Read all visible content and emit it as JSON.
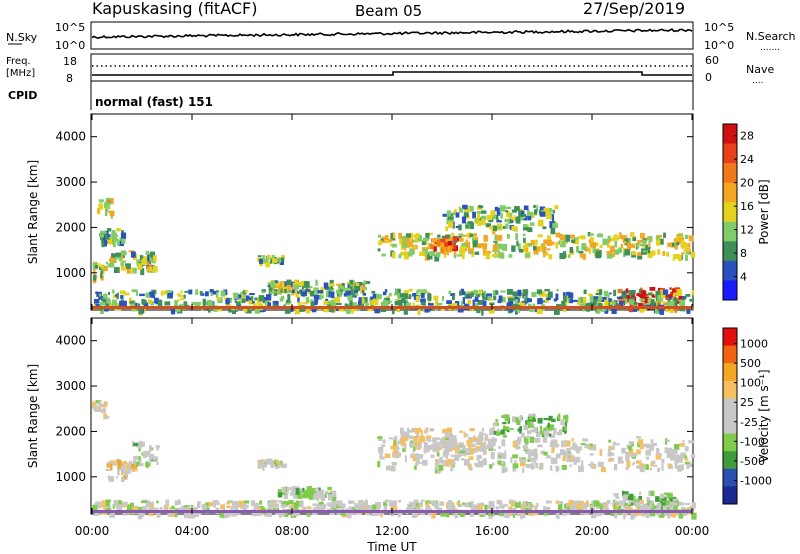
{
  "header": {
    "station": "Kapuskasing (fitACF)",
    "beam": "Beam 05",
    "date": "27/Sep/2019"
  },
  "strip": {
    "nsky_label": "N.Sky",
    "nsky_ticks": [
      "10^5",
      "10^0"
    ],
    "nsearch_label": "N.Search",
    "nsearch_ticks": [
      "10^5",
      "10^0"
    ],
    "freq_label": "Freq.",
    "freq_unit": "[MHz]",
    "freq_ticks": [
      "18",
      "8"
    ],
    "nave_label": "Nave",
    "nave_ticks": [
      "60",
      "0"
    ],
    "cpid_label": "CPID",
    "mode_text": "normal (fast) 151"
  },
  "colors": {
    "power_scale": [
      "#1a1aff",
      "#2a52be",
      "#3f8f5a",
      "#7fcc6a",
      "#e5d21e",
      "#f5a623",
      "#f07a1a",
      "#e8401a",
      "#d01010"
    ],
    "velocity_scale": [
      "#e01010",
      "#f06414",
      "#f5a623",
      "#f5c060",
      "#c8c8c8",
      "#c8c8c8",
      "#7fcc4a",
      "#3e9c3a",
      "#2a4fb0",
      "#1a2a90"
    ]
  },
  "chart_data": [
    {
      "type": "heatmap",
      "name": "power",
      "ylabel": "Slant Range [km]",
      "yticks": [
        "1000",
        "2000",
        "3000",
        "4000"
      ],
      "ylim": [
        180,
        4500
      ],
      "colorbar_label": "Power [dB]",
      "colorbar_ticks": [
        "4",
        "8",
        "12",
        "16",
        "20",
        "24",
        "28"
      ],
      "colorbar_range": [
        0,
        30
      ],
      "bands": [
        {
          "t0": 0.0,
          "t1": 0.5,
          "r0": 900,
          "r1": 1250,
          "v": 14
        },
        {
          "t0": 0.5,
          "t1": 2.5,
          "r0": 1100,
          "r1": 1500,
          "v": 12
        },
        {
          "t0": 0.2,
          "t1": 0.8,
          "r0": 2300,
          "r1": 2700,
          "v": 16
        },
        {
          "t0": 0.2,
          "t1": 1.2,
          "r0": 1700,
          "r1": 2000,
          "v": 10
        },
        {
          "t0": 6.6,
          "t1": 7.6,
          "r0": 1250,
          "r1": 1400,
          "v": 10
        },
        {
          "t0": 7.0,
          "t1": 11.0,
          "r0": 600,
          "r1": 850,
          "v": 12
        },
        {
          "t0": 11.4,
          "t1": 24.0,
          "r0": 1400,
          "r1": 1900,
          "v": 14
        },
        {
          "t0": 13.5,
          "t1": 14.5,
          "r0": 1550,
          "r1": 1800,
          "v": 22
        },
        {
          "t0": 21.0,
          "t1": 23.5,
          "r0": 250,
          "r1": 700,
          "v": 26
        },
        {
          "t0": 0.0,
          "t1": 24.0,
          "r0": 200,
          "r1": 650,
          "v": 10
        },
        {
          "t0": 14.0,
          "t1": 18.5,
          "r0": 2000,
          "r1": 2500,
          "v": 10
        }
      ]
    },
    {
      "type": "heatmap",
      "name": "velocity",
      "ylabel": "Slant Range [km]",
      "yticks": [
        "1000",
        "2000",
        "3000",
        "4000"
      ],
      "ylim": [
        180,
        4500
      ],
      "colorbar_label": "Velocity [m s⁻¹]",
      "colorbar_ticks": [
        "1000",
        "500",
        "100",
        "25",
        "-25",
        "-100",
        "-500",
        "-1000"
      ],
      "colorbar_range": [
        -1000,
        1000
      ],
      "bands": [
        {
          "t0": 0.0,
          "t1": 0.5,
          "r0": 2300,
          "r1": 2700,
          "v": 0
        },
        {
          "t0": 0.5,
          "t1": 1.6,
          "r0": 1000,
          "r1": 1400,
          "v": 150
        },
        {
          "t0": 1.6,
          "t1": 2.6,
          "r0": 1300,
          "r1": 1800,
          "v": -150
        },
        {
          "t0": 6.6,
          "t1": 7.6,
          "r0": 1250,
          "r1": 1400,
          "v": 0
        },
        {
          "t0": 7.4,
          "t1": 9.6,
          "r0": 600,
          "r1": 800,
          "v": -200
        },
        {
          "t0": 11.4,
          "t1": 24.0,
          "r0": 1200,
          "r1": 1900,
          "v": 0
        },
        {
          "t0": 12.0,
          "t1": 16.0,
          "r0": 1600,
          "r1": 2100,
          "v": 120
        },
        {
          "t0": 20.8,
          "t1": 23.5,
          "r0": 250,
          "r1": 700,
          "v": -300
        },
        {
          "t0": 0.0,
          "t1": 24.0,
          "r0": 200,
          "r1": 500,
          "v": 0
        },
        {
          "t0": 16.0,
          "t1": 19.0,
          "r0": 1900,
          "r1": 2400,
          "v": -300
        }
      ]
    }
  ],
  "xaxis": {
    "label": "Time UT",
    "ticks": [
      "00:00",
      "04:00",
      "08:00",
      "12:00",
      "16:00",
      "20:00",
      "00:00"
    ]
  }
}
